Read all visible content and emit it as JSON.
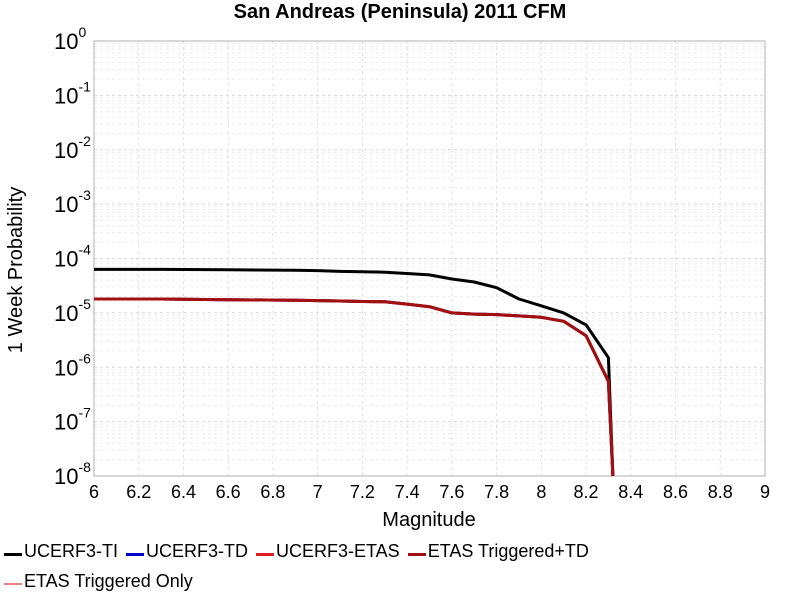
{
  "chart_data": {
    "type": "line",
    "title": "San Andreas (Peninsula) 2011 CFM",
    "xlabel": "Magnitude",
    "ylabel": "1 Week Probability",
    "xlim": [
      6,
      9
    ],
    "ylim": [
      1e-08,
      1
    ],
    "yscale": "log",
    "grid": true,
    "legend_position": "bottom",
    "x_ticks": [
      "6",
      "6.2",
      "6.4",
      "6.6",
      "6.8",
      "7",
      "7.2",
      "7.4",
      "7.6",
      "7.8",
      "8",
      "8.2",
      "8.4",
      "8.6",
      "8.8",
      "9"
    ],
    "y_ticks": [
      {
        "base": "10",
        "exp": "0"
      },
      {
        "base": "10",
        "exp": "-1"
      },
      {
        "base": "10",
        "exp": "-2"
      },
      {
        "base": "10",
        "exp": "-3"
      },
      {
        "base": "10",
        "exp": "-4"
      },
      {
        "base": "10",
        "exp": "-5"
      },
      {
        "base": "10",
        "exp": "-6"
      },
      {
        "base": "10",
        "exp": "-7"
      },
      {
        "base": "10",
        "exp": "-8"
      }
    ],
    "series": [
      {
        "name": "UCERF3-TI",
        "color": "#000000",
        "x": [
          6.0,
          6.3,
          6.6,
          6.9,
          7.0,
          7.1,
          7.2,
          7.3,
          7.4,
          7.5,
          7.6,
          7.7,
          7.8,
          7.9,
          8.0,
          8.1,
          8.2,
          8.3,
          8.32
        ],
        "y": [
          6.3e-05,
          6.3e-05,
          6.2e-05,
          6.1e-05,
          6e-05,
          5.8e-05,
          5.7e-05,
          5.6e-05,
          5.3e-05,
          5e-05,
          4.2e-05,
          3.7e-05,
          2.9e-05,
          1.8e-05,
          1.35e-05,
          1e-05,
          6e-06,
          1.5e-06,
          1e-08
        ]
      },
      {
        "name": "UCERF3-TD",
        "color": "#0000cc",
        "x": [
          6.0,
          6.3,
          6.6,
          6.9,
          7.0,
          7.1,
          7.2,
          7.3,
          7.4,
          7.5,
          7.6,
          7.7,
          7.8,
          7.9,
          8.0,
          8.1,
          8.2,
          8.3,
          8.32
        ],
        "y": [
          1.8e-05,
          1.8e-05,
          1.75e-05,
          1.7e-05,
          1.68e-05,
          1.65e-05,
          1.62e-05,
          1.6e-05,
          1.45e-05,
          1.3e-05,
          1e-05,
          9.5e-06,
          9.3e-06,
          8.8e-06,
          8.3e-06,
          7e-06,
          3.8e-06,
          5.5e-07,
          1e-08
        ]
      },
      {
        "name": "UCERF3-ETAS",
        "color": "#e02020",
        "x": [
          6.0,
          6.3,
          6.6,
          6.9,
          7.0,
          7.1,
          7.2,
          7.3,
          7.4,
          7.5,
          7.6,
          7.7,
          7.8,
          7.9,
          8.0,
          8.1,
          8.2,
          8.3,
          8.32
        ],
        "y": [
          1.8e-05,
          1.8e-05,
          1.75e-05,
          1.7e-05,
          1.68e-05,
          1.65e-05,
          1.62e-05,
          1.6e-05,
          1.45e-05,
          1.3e-05,
          1e-05,
          9.5e-06,
          9.3e-06,
          8.8e-06,
          8.3e-06,
          7e-06,
          3.8e-06,
          5.5e-07,
          1e-08
        ]
      },
      {
        "name": "ETAS Triggered+TD",
        "color": "#a01010",
        "x": [
          6.0,
          6.3,
          6.6,
          6.9,
          7.0,
          7.1,
          7.2,
          7.3,
          7.4,
          7.5,
          7.6,
          7.7,
          7.8,
          7.9,
          8.0,
          8.1,
          8.2,
          8.3,
          8.32
        ],
        "y": [
          1.8e-05,
          1.8e-05,
          1.75e-05,
          1.7e-05,
          1.68e-05,
          1.65e-05,
          1.62e-05,
          1.6e-05,
          1.45e-05,
          1.3e-05,
          1e-05,
          9.5e-06,
          9.3e-06,
          8.8e-06,
          8.3e-06,
          7e-06,
          3.8e-06,
          5.5e-07,
          1e-08
        ]
      },
      {
        "name": "ETAS Triggered Only",
        "color": "#f08080",
        "x": [],
        "y": []
      }
    ]
  }
}
